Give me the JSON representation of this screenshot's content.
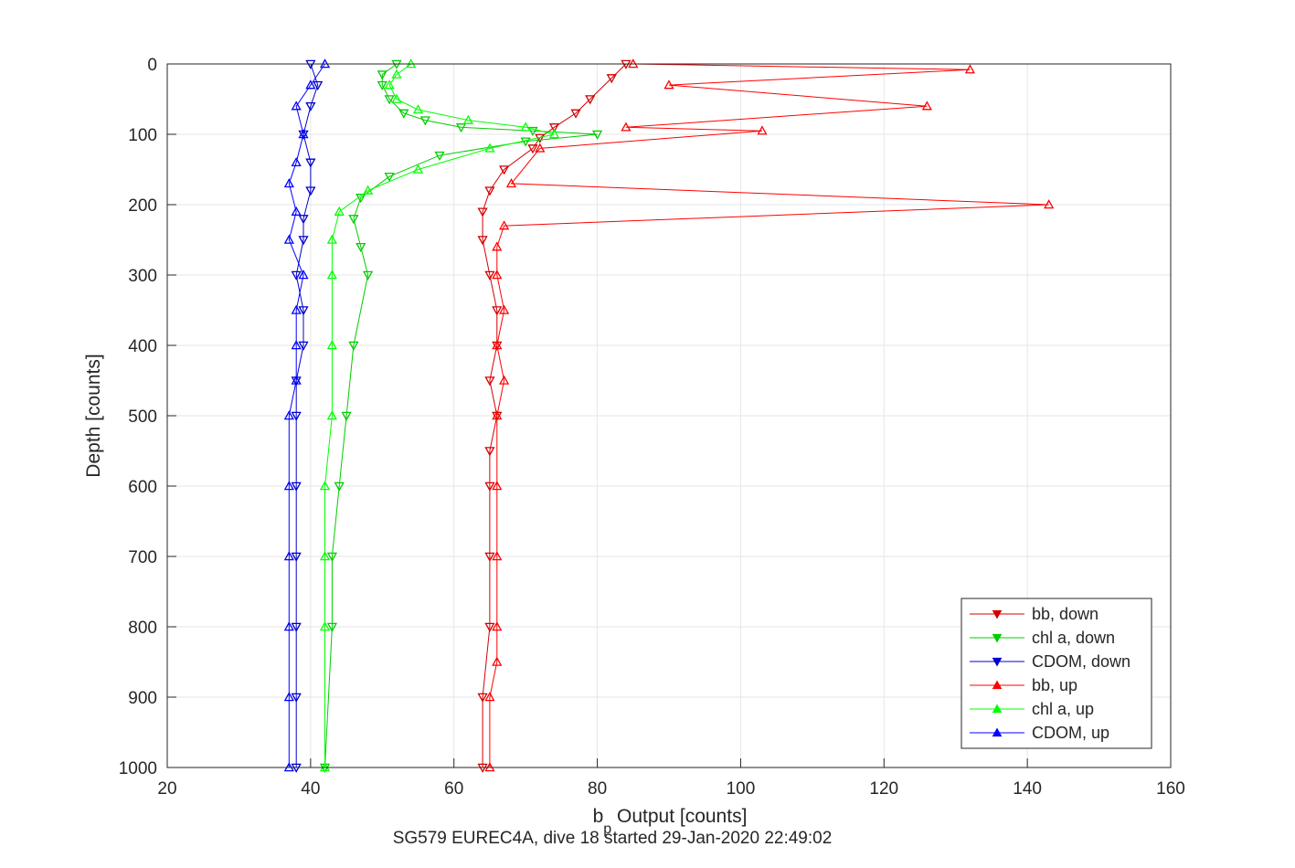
{
  "chart_data": {
    "type": "scatter",
    "caption": "SG579 EUREC4A, dive 18 started 29-Jan-2020 22:49:02",
    "xlabel": "b",
    "xlabel_subscript": "p",
    "xlabel_rest": " Output [counts]",
    "ylabel": "Depth [counts]",
    "xlim": [
      20,
      160
    ],
    "ylim": [
      0,
      1000
    ],
    "y_reversed": true,
    "x_ticks": [
      "20",
      "40",
      "60",
      "80",
      "100",
      "120",
      "140",
      "160"
    ],
    "y_ticks": [
      "0",
      "100",
      "200",
      "300",
      "400",
      "500",
      "600",
      "700",
      "800",
      "900",
      "1000"
    ],
    "grid": true,
    "legend_position": "bottom-right",
    "series": [
      {
        "name": "bb, down",
        "color": "#d40000",
        "marker": "triangle-down",
        "x": [
          84,
          82,
          79,
          77,
          74,
          72,
          71,
          67,
          65,
          64,
          64,
          65,
          66,
          66,
          65,
          66,
          65,
          65,
          65,
          65,
          64,
          64
        ],
        "y": [
          0,
          20,
          50,
          70,
          90,
          105,
          120,
          150,
          180,
          210,
          250,
          300,
          350,
          400,
          450,
          500,
          550,
          600,
          700,
          800,
          900,
          1000
        ]
      },
      {
        "name": "chl a, down",
        "color": "#00cc00",
        "marker": "triangle-down",
        "x": [
          52,
          50,
          50,
          51,
          53,
          56,
          61,
          71,
          80,
          70,
          58,
          51,
          47,
          46,
          47,
          48,
          46,
          45,
          44,
          43,
          43,
          42
        ],
        "y": [
          0,
          15,
          30,
          50,
          70,
          80,
          90,
          95,
          100,
          110,
          130,
          160,
          190,
          220,
          260,
          300,
          400,
          500,
          600,
          700,
          800,
          1000
        ]
      },
      {
        "name": "CDOM, down",
        "color": "#0000cc",
        "marker": "triangle-down",
        "x": [
          40,
          41,
          40,
          39,
          40,
          40,
          39,
          39,
          38,
          39,
          39,
          38,
          38,
          38,
          38,
          38,
          38,
          38
        ],
        "y": [
          0,
          30,
          60,
          100,
          140,
          180,
          220,
          250,
          300,
          350,
          400,
          450,
          500,
          600,
          700,
          800,
          900,
          1000
        ]
      },
      {
        "name": "bb, up",
        "color": "#ff0000",
        "marker": "triangle-up",
        "x": [
          85,
          132,
          90,
          126,
          84,
          103,
          72,
          68,
          143,
          67,
          66,
          66,
          67,
          66,
          67,
          66,
          66,
          66,
          66,
          66,
          65,
          65
        ],
        "y": [
          0,
          8,
          30,
          60,
          90,
          95,
          120,
          170,
          200,
          230,
          260,
          300,
          350,
          400,
          450,
          500,
          600,
          700,
          800,
          850,
          900,
          1000
        ]
      },
      {
        "name": "chl a, up",
        "color": "#00ff00",
        "marker": "triangle-up",
        "x": [
          54,
          52,
          51,
          52,
          55,
          62,
          70,
          74,
          65,
          55,
          48,
          44,
          43,
          43,
          43,
          43,
          42,
          42,
          42,
          42
        ],
        "y": [
          0,
          15,
          30,
          50,
          65,
          80,
          90,
          100,
          120,
          150,
          180,
          210,
          250,
          300,
          400,
          500,
          600,
          700,
          800,
          1000
        ]
      },
      {
        "name": "CDOM, up",
        "color": "#0000ff",
        "marker": "triangle-up",
        "x": [
          42,
          40,
          38,
          39,
          38,
          37,
          38,
          37,
          39,
          38,
          38,
          38,
          37,
          37,
          37,
          37,
          37,
          37
        ],
        "y": [
          0,
          30,
          60,
          100,
          140,
          170,
          210,
          250,
          300,
          350,
          400,
          450,
          500,
          600,
          700,
          800,
          900,
          1000
        ]
      }
    ]
  }
}
